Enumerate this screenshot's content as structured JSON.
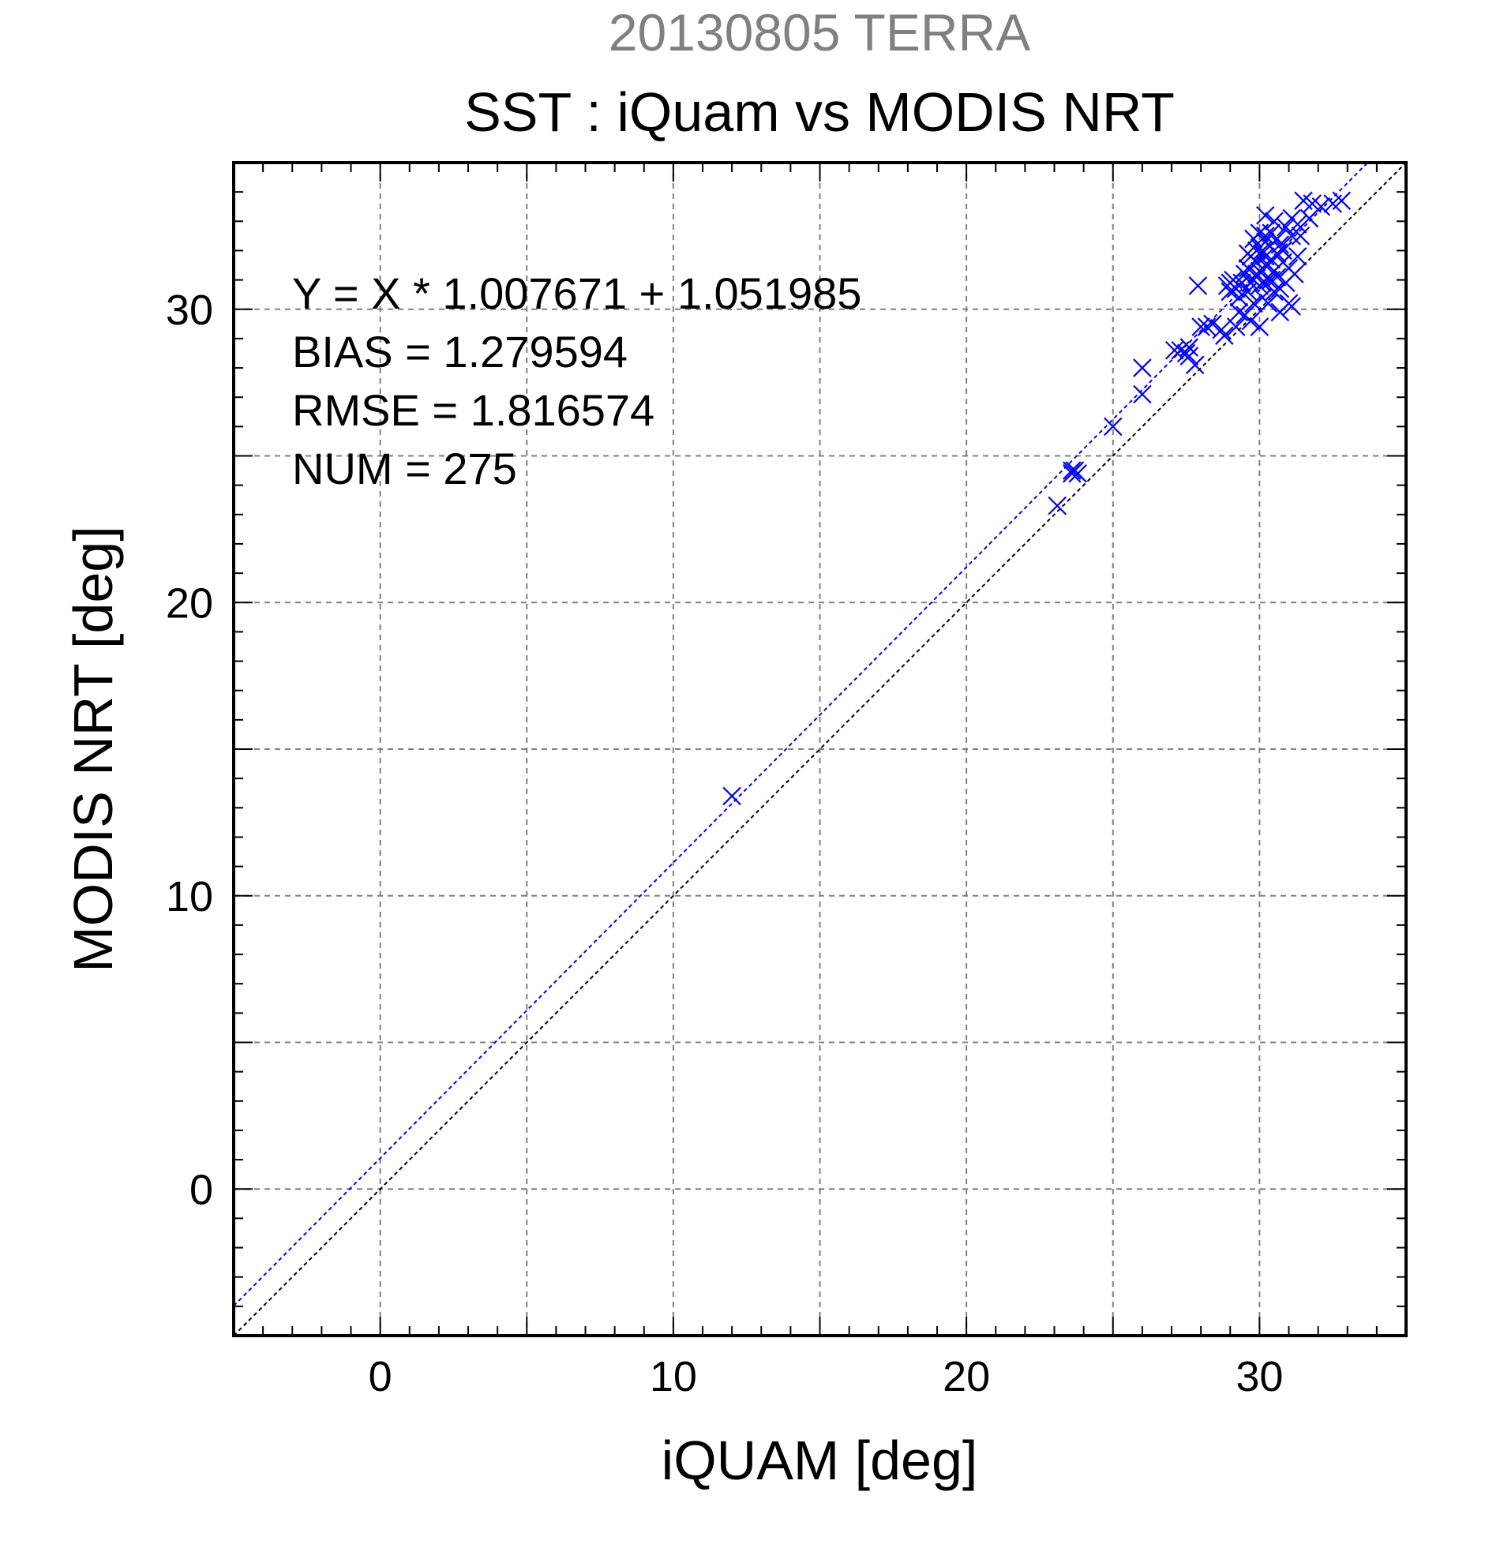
{
  "chart_data": {
    "type": "scatter",
    "subtitle": "20130805 TERRA",
    "title": "SST : iQuam vs MODIS NRT",
    "xlabel": "iQUAM [deg]",
    "ylabel": "MODIS NRT [deg]",
    "xlim": [
      -5,
      35
    ],
    "ylim": [
      -5,
      35
    ],
    "x_ticks": [
      0,
      10,
      20,
      30
    ],
    "y_ticks": [
      0,
      10,
      20,
      30
    ],
    "x_tick_labels": [
      "0",
      "10",
      "20",
      "30"
    ],
    "y_tick_labels": [
      "0",
      "10",
      "20",
      "30"
    ],
    "grid": true,
    "colors": {
      "points": "#0000ff",
      "fit_line": "#0000ff",
      "identity_line": "#000000",
      "subtitle": "#808080",
      "grid": "#808080"
    },
    "annotations": {
      "equation": "Y = X * 1.007671 + 1.051985",
      "bias": "BIAS = 1.279594",
      "rmse": "RMSE = 1.816574",
      "num": "NUM = 275"
    },
    "fit_line": {
      "slope": 1.007671,
      "intercept": 1.051985
    },
    "identity_line": {
      "slope": 1,
      "intercept": 0
    },
    "points": [
      [
        12.0,
        13.4
      ],
      [
        23.1,
        23.3
      ],
      [
        23.6,
        24.4
      ],
      [
        23.7,
        24.5
      ],
      [
        23.8,
        24.4
      ],
      [
        23.6,
        24.5
      ],
      [
        25.0,
        26.0
      ],
      [
        26.0,
        27.1
      ],
      [
        26.0,
        28.0
      ],
      [
        27.1,
        28.6
      ],
      [
        27.3,
        28.6
      ],
      [
        27.5,
        28.5
      ],
      [
        27.6,
        28.4
      ],
      [
        27.8,
        28.1
      ],
      [
        27.6,
        28.7
      ],
      [
        28.0,
        29.4
      ],
      [
        28.2,
        29.4
      ],
      [
        28.4,
        29.5
      ],
      [
        28.7,
        29.3
      ],
      [
        27.9,
        30.8
      ],
      [
        28.9,
        30.8
      ],
      [
        29.0,
        30.9
      ],
      [
        29.0,
        30.6
      ],
      [
        29.1,
        31.0
      ],
      [
        29.2,
        30.7
      ],
      [
        29.3,
        29.9
      ],
      [
        29.3,
        30.4
      ],
      [
        29.4,
        30.9
      ],
      [
        29.5,
        31.2
      ],
      [
        29.6,
        30.6
      ],
      [
        29.6,
        31.4
      ],
      [
        29.7,
        29.6
      ],
      [
        29.7,
        31.8
      ],
      [
        29.8,
        30.2
      ],
      [
        29.8,
        31.0
      ],
      [
        29.9,
        31.6
      ],
      [
        29.9,
        32.0
      ],
      [
        30.0,
        30.8
      ],
      [
        30.0,
        31.3
      ],
      [
        30.0,
        29.4
      ],
      [
        30.1,
        31.9
      ],
      [
        30.1,
        30.4
      ],
      [
        30.2,
        31.5
      ],
      [
        30.2,
        32.3
      ],
      [
        30.3,
        31.0
      ],
      [
        30.3,
        30.2
      ],
      [
        30.4,
        31.7
      ],
      [
        30.4,
        32.6
      ],
      [
        30.5,
        31.3
      ],
      [
        30.5,
        30.6
      ],
      [
        30.6,
        31.9
      ],
      [
        30.6,
        31.1
      ],
      [
        30.7,
        32.2
      ],
      [
        30.7,
        30.7
      ],
      [
        30.8,
        31.6
      ],
      [
        30.9,
        30.9
      ],
      [
        30.9,
        32.8
      ],
      [
        31.0,
        31.4
      ],
      [
        31.0,
        30.2
      ],
      [
        31.1,
        32.5
      ],
      [
        31.1,
        30.1
      ],
      [
        31.2,
        31.2
      ],
      [
        31.3,
        32.9
      ],
      [
        31.3,
        31.8
      ],
      [
        31.4,
        32.5
      ],
      [
        31.5,
        33.7
      ],
      [
        31.7,
        33.1
      ],
      [
        31.8,
        33.6
      ],
      [
        32.1,
        33.5
      ],
      [
        32.5,
        33.6
      ],
      [
        32.8,
        33.7
      ],
      [
        30.2,
        33.2
      ],
      [
        30.0,
        32.6
      ],
      [
        29.8,
        32.4
      ],
      [
        30.5,
        33.0
      ],
      [
        31.1,
        33.1
      ],
      [
        29.5,
        29.8
      ],
      [
        29.2,
        29.4
      ],
      [
        28.8,
        29.1
      ],
      [
        30.7,
        29.9
      ],
      [
        30.1,
        32.0
      ],
      [
        30.2,
        31.8
      ],
      [
        29.9,
        31.2
      ],
      [
        30.3,
        31.5
      ],
      [
        30.0,
        32.1
      ],
      [
        30.4,
        31.0
      ],
      [
        30.6,
        32.4
      ],
      [
        29.7,
        30.9
      ],
      [
        30.8,
        32.0
      ],
      [
        29.6,
        31.9
      ],
      [
        30.1,
        30.9
      ],
      [
        30.2,
        32.5
      ]
    ]
  }
}
